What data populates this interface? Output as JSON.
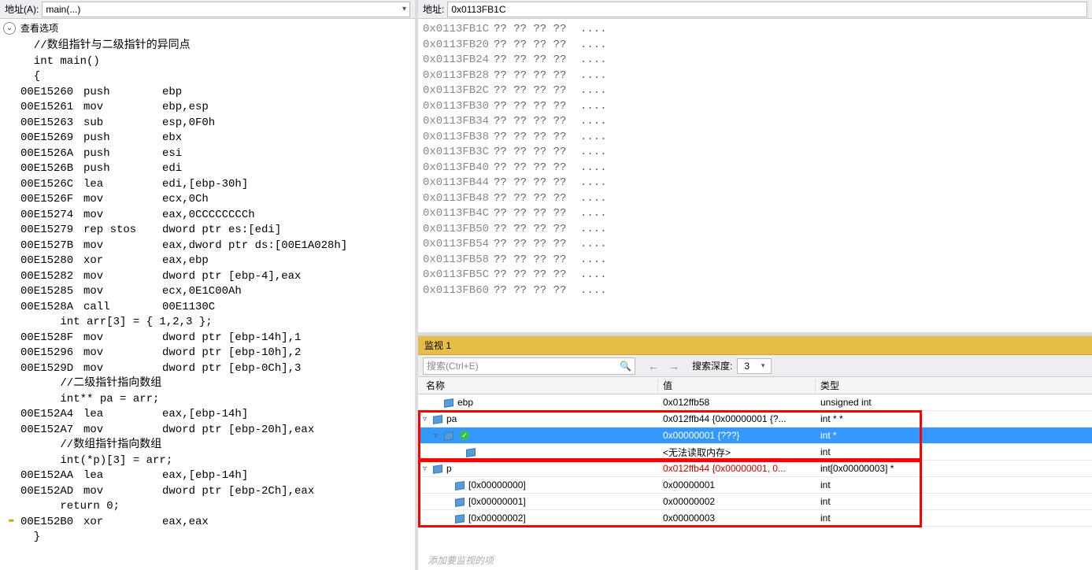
{
  "left": {
    "addr_label": "地址(A):",
    "addr_value": "main(...)",
    "view_options": "查看选项",
    "asm": [
      {
        "t": "src",
        "s": "  //数组指针与二级指针的异同点"
      },
      {
        "t": "src",
        "s": "  int main()"
      },
      {
        "t": "src",
        "s": "  {"
      },
      {
        "t": "asm",
        "a": "00E15260",
        "o": "push",
        "r": "ebp"
      },
      {
        "t": "asm",
        "a": "00E15261",
        "o": "mov",
        "r": "ebp,esp"
      },
      {
        "t": "asm",
        "a": "00E15263",
        "o": "sub",
        "r": "esp,0F0h"
      },
      {
        "t": "asm",
        "a": "00E15269",
        "o": "push",
        "r": "ebx"
      },
      {
        "t": "asm",
        "a": "00E1526A",
        "o": "push",
        "r": "esi"
      },
      {
        "t": "asm",
        "a": "00E1526B",
        "o": "push",
        "r": "edi"
      },
      {
        "t": "asm",
        "a": "00E1526C",
        "o": "lea",
        "r": "edi,[ebp-30h]"
      },
      {
        "t": "asm",
        "a": "00E1526F",
        "o": "mov",
        "r": "ecx,0Ch"
      },
      {
        "t": "asm",
        "a": "00E15274",
        "o": "mov",
        "r": "eax,0CCCCCCCCh"
      },
      {
        "t": "asm",
        "a": "00E15279",
        "o": "rep stos",
        "r": "dword ptr es:[edi]"
      },
      {
        "t": "asm",
        "a": "00E1527B",
        "o": "mov",
        "r": "eax,dword ptr ds:[00E1A028h]"
      },
      {
        "t": "asm",
        "a": "00E15280",
        "o": "xor",
        "r": "eax,ebp"
      },
      {
        "t": "asm",
        "a": "00E15282",
        "o": "mov",
        "r": "dword ptr [ebp-4],eax"
      },
      {
        "t": "asm",
        "a": "00E15285",
        "o": "mov",
        "r": "ecx,0E1C00Ah"
      },
      {
        "t": "asm",
        "a": "00E1528A",
        "o": "call",
        "r": "00E1130C"
      },
      {
        "t": "src",
        "s": "      int arr[3] = { 1,2,3 };"
      },
      {
        "t": "asm",
        "a": "00E1528F",
        "o": "mov",
        "r": "dword ptr [ebp-14h],1"
      },
      {
        "t": "asm",
        "a": "00E15296",
        "o": "mov",
        "r": "dword ptr [ebp-10h],2"
      },
      {
        "t": "asm",
        "a": "00E1529D",
        "o": "mov",
        "r": "dword ptr [ebp-0Ch],3"
      },
      {
        "t": "src",
        "s": "      //二级指针指向数组"
      },
      {
        "t": "src",
        "s": "      int** pa = arr;"
      },
      {
        "t": "asm",
        "a": "00E152A4",
        "o": "lea",
        "r": "eax,[ebp-14h]"
      },
      {
        "t": "asm",
        "a": "00E152A7",
        "o": "mov",
        "r": "dword ptr [ebp-20h],eax"
      },
      {
        "t": "src",
        "s": "      //数组指针指向数组"
      },
      {
        "t": "src",
        "s": "      int(*p)[3] = arr;"
      },
      {
        "t": "asm",
        "a": "00E152AA",
        "o": "lea",
        "r": "eax,[ebp-14h]"
      },
      {
        "t": "asm",
        "a": "00E152AD",
        "o": "mov",
        "r": "dword ptr [ebp-2Ch],eax"
      },
      {
        "t": "src",
        "s": "      return 0;"
      },
      {
        "t": "asm",
        "a": "00E152B0",
        "o": "xor",
        "r": "eax,eax",
        "arrow": true
      },
      {
        "t": "src",
        "s": "  }"
      }
    ]
  },
  "right": {
    "addr_label": "地址:",
    "addr_value": "0x0113FB1C",
    "mem": [
      {
        "a": "0x0113FB1C",
        "h": "?? ?? ?? ??",
        "c": "...."
      },
      {
        "a": "0x0113FB20",
        "h": "?? ?? ?? ??",
        "c": "...."
      },
      {
        "a": "0x0113FB24",
        "h": "?? ?? ?? ??",
        "c": "...."
      },
      {
        "a": "0x0113FB28",
        "h": "?? ?? ?? ??",
        "c": "...."
      },
      {
        "a": "0x0113FB2C",
        "h": "?? ?? ?? ??",
        "c": "...."
      },
      {
        "a": "0x0113FB30",
        "h": "?? ?? ?? ??",
        "c": "...."
      },
      {
        "a": "0x0113FB34",
        "h": "?? ?? ?? ??",
        "c": "...."
      },
      {
        "a": "0x0113FB38",
        "h": "?? ?? ?? ??",
        "c": "...."
      },
      {
        "a": "0x0113FB3C",
        "h": "?? ?? ?? ??",
        "c": "...."
      },
      {
        "a": "0x0113FB40",
        "h": "?? ?? ?? ??",
        "c": "...."
      },
      {
        "a": "0x0113FB44",
        "h": "?? ?? ?? ??",
        "c": "...."
      },
      {
        "a": "0x0113FB48",
        "h": "?? ?? ?? ??",
        "c": "...."
      },
      {
        "a": "0x0113FB4C",
        "h": "?? ?? ?? ??",
        "c": "...."
      },
      {
        "a": "0x0113FB50",
        "h": "?? ?? ?? ??",
        "c": "...."
      },
      {
        "a": "0x0113FB54",
        "h": "?? ?? ?? ??",
        "c": "...."
      },
      {
        "a": "0x0113FB58",
        "h": "?? ?? ?? ??",
        "c": "...."
      },
      {
        "a": "0x0113FB5C",
        "h": "?? ?? ?? ??",
        "c": "...."
      },
      {
        "a": "0x0113FB60",
        "h": "?? ?? ?? ??",
        "c": "...."
      }
    ],
    "watch": {
      "title": "监视 1",
      "search_placeholder": "搜索(Ctrl+E)",
      "depth_label": "搜索深度:",
      "depth_value": "3",
      "col_name": "名称",
      "col_value": "值",
      "col_type": "类型",
      "add_item": "添加要监视的项",
      "rows": [
        {
          "indent": 1,
          "tri": "",
          "name": "ebp",
          "value": "0x012ffb58",
          "type": "unsigned int",
          "sel": false,
          "red": false
        },
        {
          "indent": 0,
          "tri": "▿",
          "name": "pa",
          "value": "0x012ffb44 {0x00000001 {?...",
          "type": "int * *",
          "sel": false,
          "red": false
        },
        {
          "indent": 1,
          "tri": "▿",
          "name": "",
          "value": "0x00000001 {???}",
          "type": "int *",
          "sel": true,
          "red": false,
          "check": true
        },
        {
          "indent": 3,
          "tri": "",
          "name": "",
          "value": "<无法读取内存>",
          "type": "int",
          "sel": false,
          "red": false
        },
        {
          "indent": 0,
          "tri": "▿",
          "name": "p",
          "value": "0x012ffb44 {0x00000001, 0...",
          "type": "int[0x00000003] *",
          "sel": false,
          "red": true
        },
        {
          "indent": 2,
          "tri": "",
          "name": "[0x00000000]",
          "value": "0x00000001",
          "type": "int",
          "sel": false,
          "red": false
        },
        {
          "indent": 2,
          "tri": "",
          "name": "[0x00000001]",
          "value": "0x00000002",
          "type": "int",
          "sel": false,
          "red": false
        },
        {
          "indent": 2,
          "tri": "",
          "name": "[0x00000002]",
          "value": "0x00000003",
          "type": "int",
          "sel": false,
          "red": false
        }
      ]
    }
  },
  "colors": {
    "panel_bg": "#eeeef2",
    "accent": "#e6be46",
    "select_bg": "#3399ff",
    "redbox": "#ff0000"
  }
}
